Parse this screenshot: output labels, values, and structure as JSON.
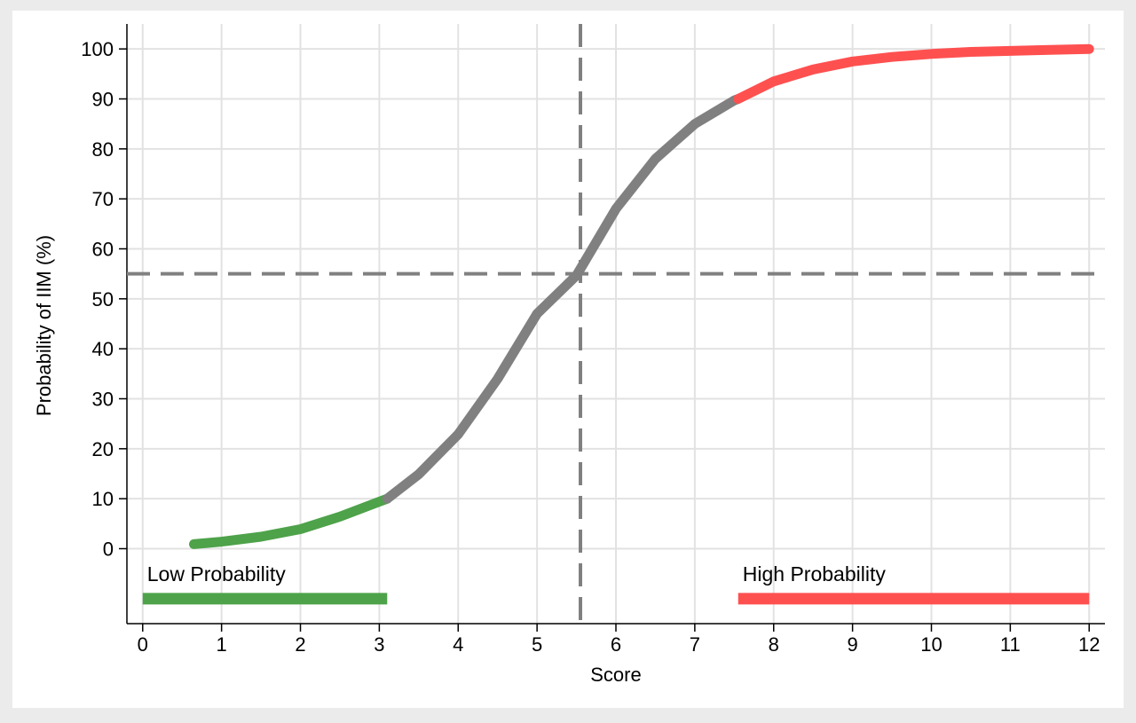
{
  "chart_data": {
    "type": "line",
    "title": "",
    "xlabel": "Score",
    "ylabel": "Probability of IIM (%)",
    "xlim": [
      -0.2,
      12.2
    ],
    "ylim": [
      -15,
      105
    ],
    "x_ticks": [
      0,
      1,
      2,
      3,
      4,
      5,
      6,
      7,
      8,
      9,
      10,
      11,
      12
    ],
    "y_ticks": [
      0,
      10,
      20,
      30,
      40,
      50,
      60,
      70,
      80,
      90,
      100
    ],
    "grid": true,
    "colors": {
      "low": "#4ea24a",
      "mid": "#808080",
      "high": "#ff5050",
      "reference": "#808080"
    },
    "curve": {
      "x": [
        0.65,
        1.0,
        1.5,
        2.0,
        2.5,
        3.0,
        3.1,
        3.5,
        4.0,
        4.5,
        5.0,
        5.5,
        6.0,
        6.5,
        7.0,
        7.5,
        7.55,
        8.0,
        8.5,
        9.0,
        9.5,
        10.0,
        10.5,
        11.0,
        11.5,
        12.0
      ],
      "y": [
        0.9,
        1.4,
        2.4,
        3.9,
        6.4,
        9.4,
        10.0,
        14.9,
        22.9,
        34.0,
        47.0,
        54.7,
        68.0,
        78.0,
        85.0,
        89.7,
        90.0,
        93.5,
        95.9,
        97.5,
        98.4,
        99.0,
        99.4,
        99.6,
        99.8,
        100.0
      ]
    },
    "segments": [
      {
        "name": "Low Probability",
        "from": 0.65,
        "to": 3.1,
        "color": "#4ea24a"
      },
      {
        "name": "",
        "from": 3.1,
        "to": 7.55,
        "color": "#808080"
      },
      {
        "name": "High Probability",
        "from": 7.55,
        "to": 12.0,
        "color": "#ff5050"
      }
    ],
    "reference_lines": {
      "x": 5.55,
      "y": 55
    },
    "annotations": [
      {
        "text": "Low Probability",
        "x_from": 0,
        "x_to": 3.1,
        "y": -10,
        "color": "#4ea24a"
      },
      {
        "text": "High Probability",
        "x_from": 7.55,
        "x_to": 12,
        "y": -10,
        "color": "#ff5050"
      }
    ]
  }
}
